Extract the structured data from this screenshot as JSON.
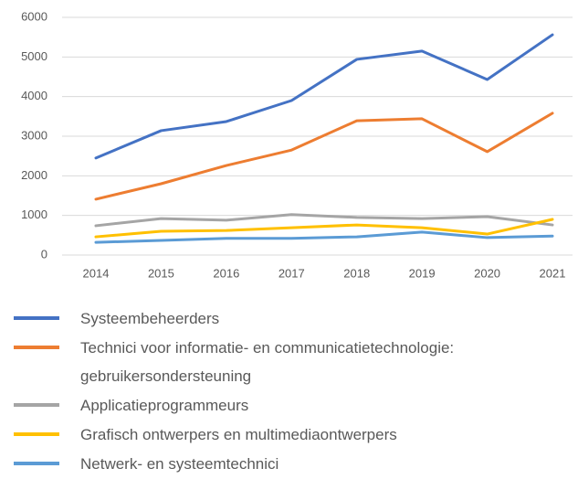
{
  "chart_data": {
    "type": "line",
    "categories": [
      "2014",
      "2015",
      "2016",
      "2017",
      "2018",
      "2019",
      "2020",
      "2021"
    ],
    "series": [
      {
        "name": "Systeembeheerders",
        "color": "#4472c4",
        "values": [
          2450,
          3140,
          3370,
          3900,
          4940,
          5150,
          4430,
          5560
        ]
      },
      {
        "name": "Technici voor informatie- en communicatietechnologie: gebruikersondersteuning",
        "color": "#ed7d31",
        "values": [
          1410,
          1800,
          2260,
          2650,
          3390,
          3440,
          2610,
          3580
        ]
      },
      {
        "name": "Applicatieprogrammeurs",
        "color": "#a5a5a5",
        "values": [
          740,
          920,
          880,
          1020,
          950,
          920,
          970,
          760
        ]
      },
      {
        "name": "Grafisch ontwerpers en multimediaontwerpers",
        "color": "#ffc000",
        "values": [
          460,
          600,
          620,
          690,
          760,
          690,
          530,
          900
        ]
      },
      {
        "name": "Netwerk- en systeemtechnici",
        "color": "#5b9bd5",
        "values": [
          320,
          370,
          420,
          420,
          460,
          580,
          440,
          480
        ]
      }
    ],
    "ylim": [
      0,
      6000
    ],
    "yticks": [
      0,
      1000,
      2000,
      3000,
      4000,
      5000,
      6000
    ],
    "grid": true,
    "legend": "bottom"
  }
}
